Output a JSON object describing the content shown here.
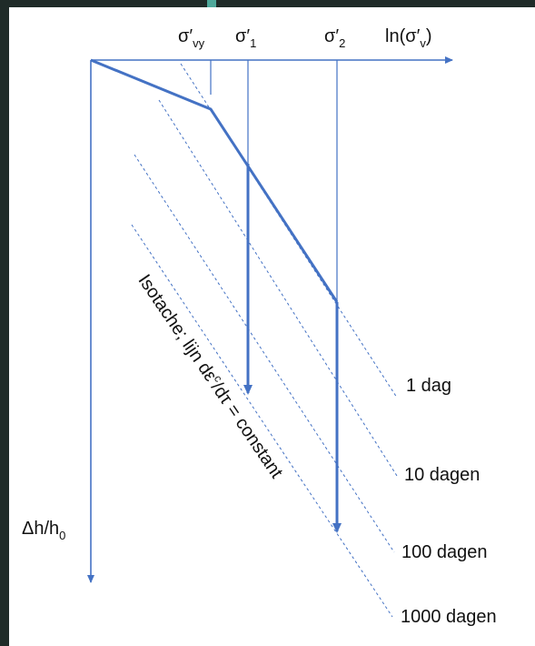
{
  "axes": {
    "x_label": "ln(σ′",
    "x_label_sub": "v",
    "x_label_close": ")",
    "y_label": "Δh/h",
    "y_label_sub": "0"
  },
  "stress_labels": {
    "sigma_vy": "σ′",
    "sigma_vy_sub": "vy",
    "sigma_1": "σ′",
    "sigma_1_sub": "1",
    "sigma_2": "σ′",
    "sigma_2_sub": "2"
  },
  "isotache": {
    "prefix": "Isotache; lijn dε",
    "sup": "c",
    "suffix": "/dτ = constant"
  },
  "isotache_lines": [
    {
      "label": "1 dag"
    },
    {
      "label": "10 dagen"
    },
    {
      "label": "100 dagen"
    },
    {
      "label": "1000 dagen"
    }
  ],
  "colors": {
    "curve": "#4472c4",
    "isotache": "#4472c4",
    "background": "#ffffff",
    "frame": "#1f2b28",
    "accent": "#4ea89a"
  }
}
